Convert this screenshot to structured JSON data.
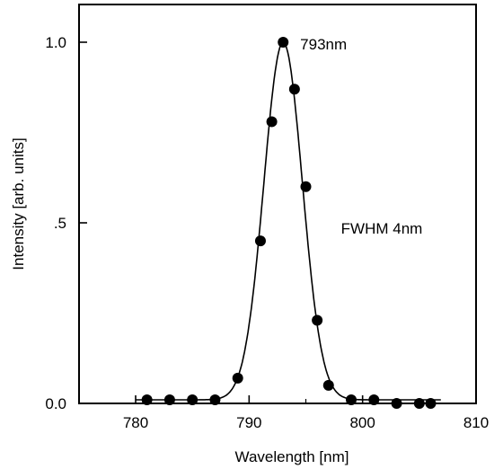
{
  "chart_data": {
    "type": "scatter",
    "xlabel": "Wavelength  [nm]",
    "ylabel": "Intensity  [arb. units]",
    "xlim": [
      775,
      810
    ],
    "ylim": [
      0,
      1.0
    ],
    "x_ticks": [
      {
        "value": 780,
        "label": "780"
      },
      {
        "value": 790,
        "label": "790"
      },
      {
        "value": 800,
        "label": "800"
      },
      {
        "value": 810,
        "label": "810"
      }
    ],
    "y_ticks": [
      {
        "value": 0.0,
        "label": "0.0"
      },
      {
        "value": 0.5,
        "label": ".5"
      },
      {
        "value": 1.0,
        "label": "1.0"
      }
    ],
    "grid": false,
    "legend": "none",
    "marker_color": "#000000",
    "line_color": "#000000",
    "points": [
      {
        "x": 781,
        "y": 0.01
      },
      {
        "x": 783,
        "y": 0.01
      },
      {
        "x": 785,
        "y": 0.01
      },
      {
        "x": 787,
        "y": 0.01
      },
      {
        "x": 789,
        "y": 0.07
      },
      {
        "x": 791,
        "y": 0.45
      },
      {
        "x": 792,
        "y": 0.78
      },
      {
        "x": 793,
        "y": 1.0
      },
      {
        "x": 794,
        "y": 0.87
      },
      {
        "x": 795,
        "y": 0.6
      },
      {
        "x": 796,
        "y": 0.23
      },
      {
        "x": 797,
        "y": 0.05
      },
      {
        "x": 799,
        "y": 0.01
      },
      {
        "x": 801,
        "y": 0.01
      },
      {
        "x": 803,
        "y": 0.0
      },
      {
        "x": 805,
        "y": 0.0
      },
      {
        "x": 806,
        "y": 0.0
      }
    ],
    "fit_curve": {
      "center": 793,
      "fwhm": 4,
      "amplitude": 1.0,
      "baseline": 0.01
    },
    "annotations": [
      {
        "text": "793nm",
        "x": 794.5,
        "y": 0.995
      },
      {
        "text": "FWHM  4nm",
        "x": 798.1,
        "y": 0.485
      }
    ]
  }
}
